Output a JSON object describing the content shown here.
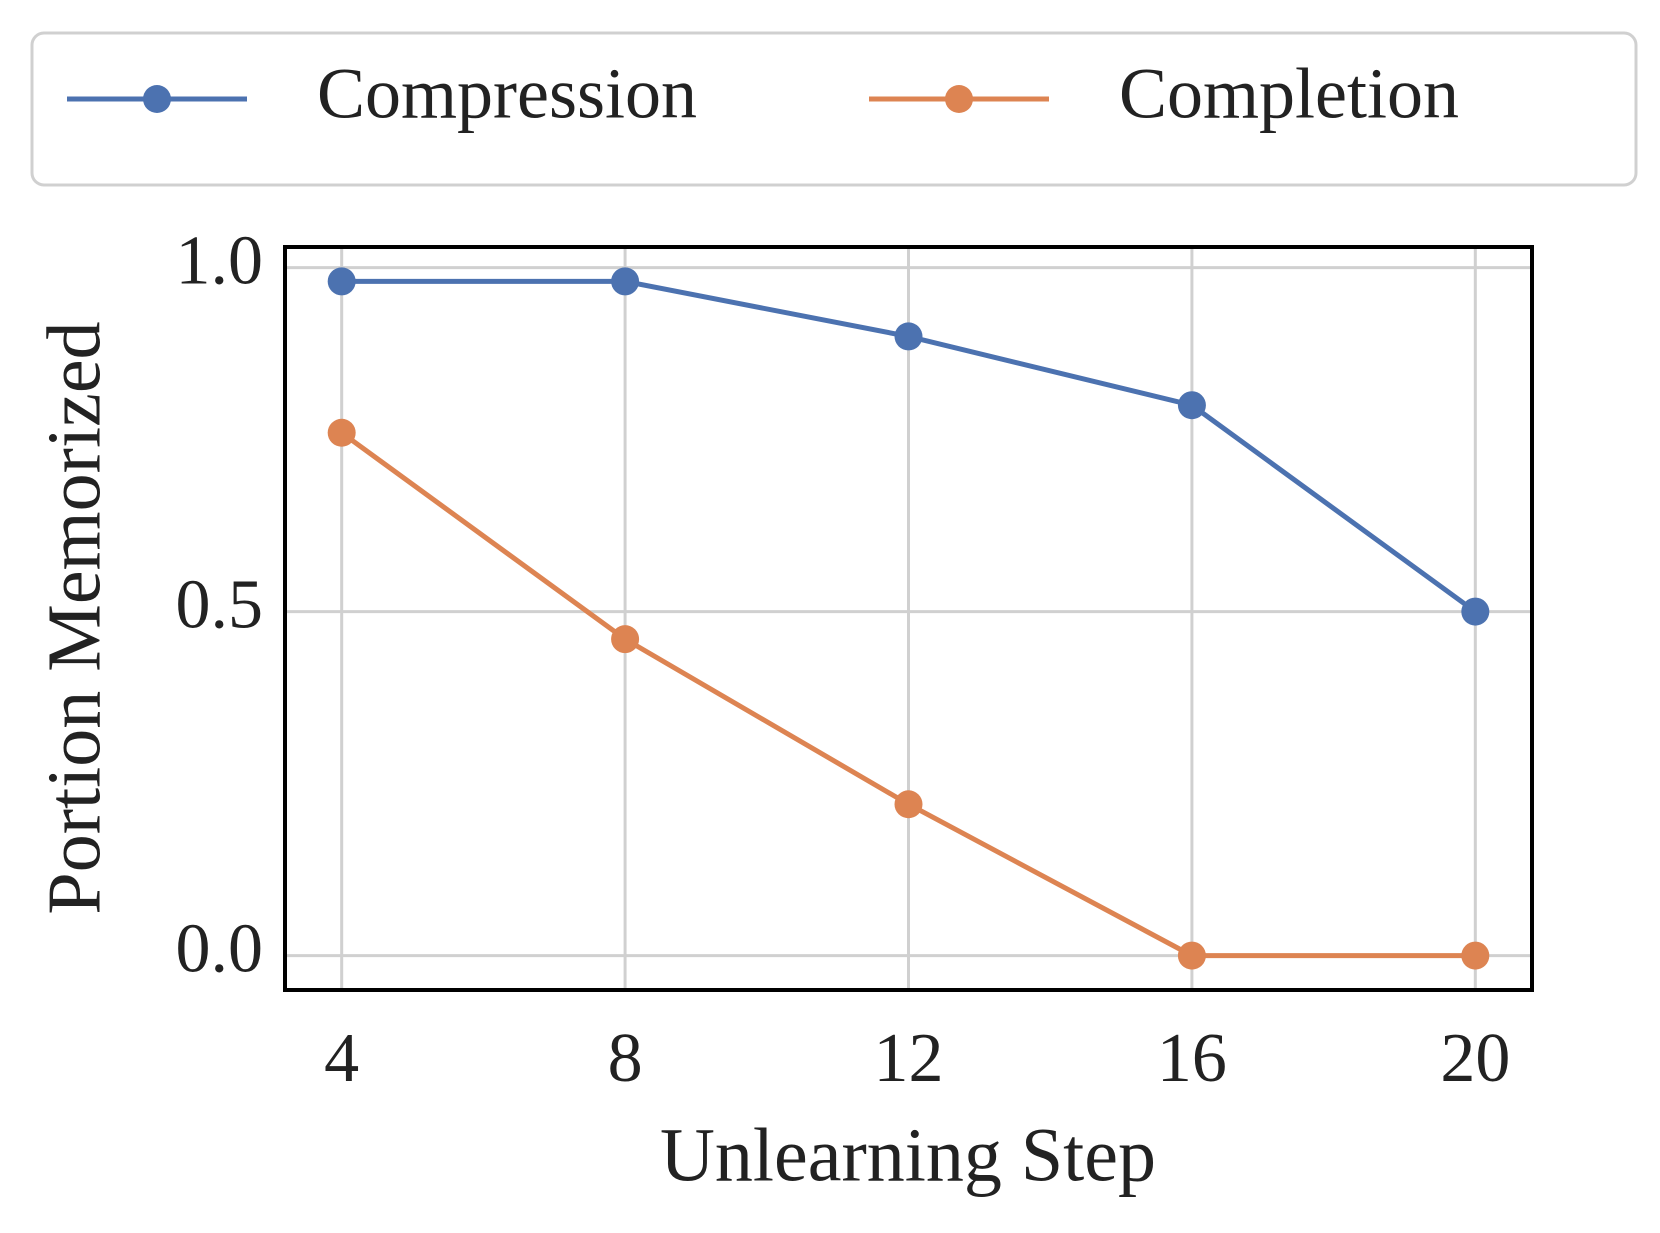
{
  "chart_data": {
    "type": "line",
    "x_label": "Unlearning Step",
    "y_label": "Portion Memorized",
    "x": [
      4,
      8,
      12,
      16,
      20
    ],
    "series": [
      {
        "name": "Compression",
        "color": "#4c72b0",
        "values": [
          0.98,
          0.98,
          0.9,
          0.8,
          0.5
        ]
      },
      {
        "name": "Completion",
        "color": "#dd8452",
        "values": [
          0.76,
          0.46,
          0.22,
          0.0,
          0.0
        ]
      }
    ],
    "xlim": [
      3.2,
      20.8
    ],
    "ylim": [
      -0.05,
      1.03
    ],
    "xticks": [
      4,
      8,
      12,
      16,
      20
    ],
    "yticks": [
      {
        "value": 0,
        "label": "0.0"
      },
      {
        "value": 0.5,
        "label": "0.5"
      },
      {
        "value": 1,
        "label": "1.0"
      }
    ],
    "grid": true,
    "legend": "top"
  }
}
